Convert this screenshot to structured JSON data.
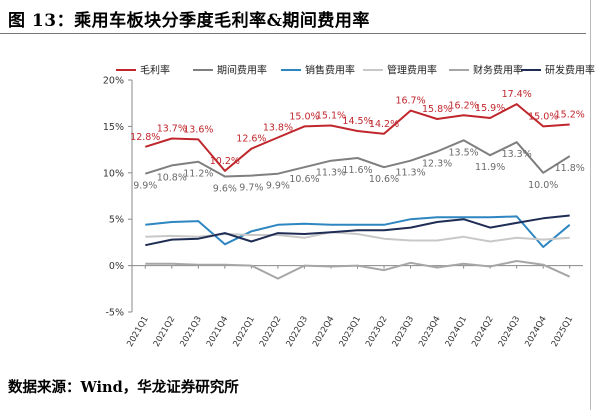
{
  "header": {
    "title": "图 13：乘用车板块分季度毛利率&期间费用率"
  },
  "footer": {
    "source": "数据来源：Wind，华龙证券研究所"
  },
  "chart_data": {
    "type": "line",
    "categories": [
      "2021Q1",
      "2021Q2",
      "2021Q3",
      "2021Q4",
      "2022Q1",
      "2022Q2",
      "2022Q3",
      "2022Q4",
      "2023Q1",
      "2023Q2",
      "2023Q3",
      "2023Q4",
      "2024Q1",
      "2024Q2",
      "2024Q3",
      "2024Q4",
      "2025Q1"
    ],
    "ylim": [
      -5,
      20
    ],
    "yticks": [
      "-5%",
      "0%",
      "5%",
      "10%",
      "15%",
      "20%"
    ],
    "ytick_values": [
      -5,
      0,
      5,
      10,
      15,
      20
    ],
    "legend_position": "top",
    "grid": false,
    "series": [
      {
        "name": "毛利率",
        "color": "#c0272d",
        "values": [
          12.8,
          13.7,
          13.6,
          10.2,
          12.6,
          13.8,
          15.0,
          15.1,
          14.5,
          14.2,
          16.7,
          15.8,
          16.2,
          15.9,
          17.4,
          15.0,
          15.2
        ],
        "labels": [
          "12.8%",
          "13.7%",
          "13.6%",
          "10.2%",
          "12.6%",
          "13.8%",
          "15.0%",
          "15.1%",
          "14.5%",
          "14.2%",
          "16.7%",
          "15.8%",
          "16.2%",
          "15.9%",
          "17.4%",
          "15.0%",
          "15.2%"
        ]
      },
      {
        "name": "期间费用率",
        "color": "#7f7f7f",
        "values": [
          9.9,
          10.8,
          11.2,
          9.6,
          9.7,
          9.9,
          10.6,
          11.3,
          11.6,
          10.6,
          11.3,
          12.3,
          13.5,
          11.9,
          13.3,
          10.0,
          11.8
        ],
        "labels": [
          "9.9%",
          "10.8%",
          "11.2%",
          "9.6%",
          "9.7%",
          "9.9%",
          "10.6%",
          "11.3%",
          "11.6%",
          "10.6%",
          "11.3%",
          "12.3%",
          "13.5%",
          "11.9%",
          "13.3%",
          "10.0%",
          "11.8%"
        ]
      },
      {
        "name": "销售费用率",
        "color": "#2e86c1",
        "values": [
          4.4,
          4.7,
          4.8,
          2.3,
          3.7,
          4.4,
          4.5,
          4.4,
          4.4,
          4.4,
          5.0,
          5.2,
          5.2,
          5.2,
          5.3,
          2.0,
          4.4
        ]
      },
      {
        "name": "管理费用率",
        "color": "#c8c8c8",
        "values": [
          3.1,
          3.2,
          3.1,
          3.4,
          3.3,
          3.3,
          3.0,
          3.6,
          3.4,
          2.9,
          2.7,
          2.7,
          3.1,
          2.6,
          3.0,
          2.8,
          3.0
        ]
      },
      {
        "name": "财务费用率",
        "color": "#a6a6a6",
        "values": [
          0.2,
          0.2,
          0.1,
          0.1,
          0.0,
          -1.4,
          0.0,
          -0.1,
          0.0,
          -0.5,
          0.3,
          -0.2,
          0.2,
          -0.1,
          0.5,
          0.1,
          -1.2
        ]
      },
      {
        "name": "研发费用率",
        "color": "#1f2d55",
        "values": [
          2.2,
          2.8,
          2.9,
          3.5,
          2.6,
          3.5,
          3.4,
          3.6,
          3.8,
          3.8,
          4.1,
          4.7,
          5.0,
          4.1,
          4.6,
          5.1,
          5.4
        ]
      }
    ]
  }
}
